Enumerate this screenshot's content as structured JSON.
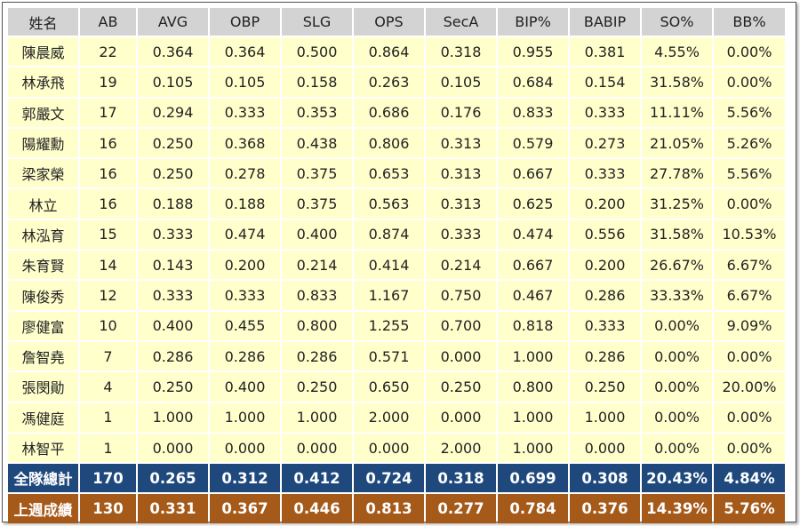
{
  "columns": [
    "姓名",
    "AB",
    "AVG",
    "OBP",
    "SLG",
    "OPS",
    "SecA",
    "BIP%",
    "BABIP",
    "SO%",
    "BB%"
  ],
  "players": [
    [
      "陳晨威",
      "22",
      "0.364",
      "0.364",
      "0.500",
      "0.864",
      "0.318",
      "0.955",
      "0.381",
      "4.55%",
      "0.00%"
    ],
    [
      "林承飛",
      "19",
      "0.105",
      "0.105",
      "0.158",
      "0.263",
      "0.105",
      "0.684",
      "0.154",
      "31.58%",
      "0.00%"
    ],
    [
      "郭嚴文",
      "17",
      "0.294",
      "0.333",
      "0.353",
      "0.686",
      "0.176",
      "0.833",
      "0.333",
      "11.11%",
      "5.56%"
    ],
    [
      "陽耀勳",
      "16",
      "0.250",
      "0.368",
      "0.438",
      "0.806",
      "0.313",
      "0.579",
      "0.273",
      "21.05%",
      "5.26%"
    ],
    [
      "梁家榮",
      "16",
      "0.250",
      "0.278",
      "0.375",
      "0.653",
      "0.313",
      "0.667",
      "0.333",
      "27.78%",
      "5.56%"
    ],
    [
      "林立",
      "16",
      "0.188",
      "0.188",
      "0.375",
      "0.563",
      "0.313",
      "0.625",
      "0.200",
      "31.25%",
      "0.00%"
    ],
    [
      "林泓育",
      "15",
      "0.333",
      "0.474",
      "0.400",
      "0.874",
      "0.333",
      "0.474",
      "0.556",
      "31.58%",
      "10.53%"
    ],
    [
      "朱育賢",
      "14",
      "0.143",
      "0.200",
      "0.214",
      "0.414",
      "0.214",
      "0.667",
      "0.200",
      "26.67%",
      "6.67%"
    ],
    [
      "陳俊秀",
      "12",
      "0.333",
      "0.333",
      "0.833",
      "1.167",
      "0.750",
      "0.467",
      "0.286",
      "33.33%",
      "6.67%"
    ],
    [
      "廖健富",
      "10",
      "0.400",
      "0.455",
      "0.800",
      "1.255",
      "0.700",
      "0.818",
      "0.333",
      "0.00%",
      "9.09%"
    ],
    [
      "詹智堯",
      "7",
      "0.286",
      "0.286",
      "0.286",
      "0.571",
      "0.000",
      "1.000",
      "0.286",
      "0.00%",
      "0.00%"
    ],
    [
      "張閔勛",
      "4",
      "0.250",
      "0.400",
      "0.250",
      "0.650",
      "0.250",
      "0.800",
      "0.250",
      "0.00%",
      "20.00%"
    ],
    [
      "馮健庭",
      "1",
      "1.000",
      "1.000",
      "1.000",
      "2.000",
      "0.000",
      "1.000",
      "1.000",
      "0.00%",
      "0.00%"
    ],
    [
      "林智平",
      "1",
      "0.000",
      "0.000",
      "0.000",
      "0.000",
      "2.000",
      "1.000",
      "0.000",
      "0.00%",
      "0.00%"
    ]
  ],
  "team_total": [
    "全隊總計",
    "170",
    "0.265",
    "0.312",
    "0.412",
    "0.724",
    "0.318",
    "0.699",
    "0.308",
    "20.43%",
    "4.84%"
  ],
  "last_week": [
    "上週成績",
    "130",
    "0.331",
    "0.367",
    "0.446",
    "0.813",
    "0.277",
    "0.784",
    "0.376",
    "14.39%",
    "5.76%"
  ],
  "colors": {
    "header_bg": "#d3d3d3",
    "player_row_bg": "#ffffcc",
    "team_total_bg": "#1f497d",
    "last_week_bg": "#a65a1a"
  }
}
